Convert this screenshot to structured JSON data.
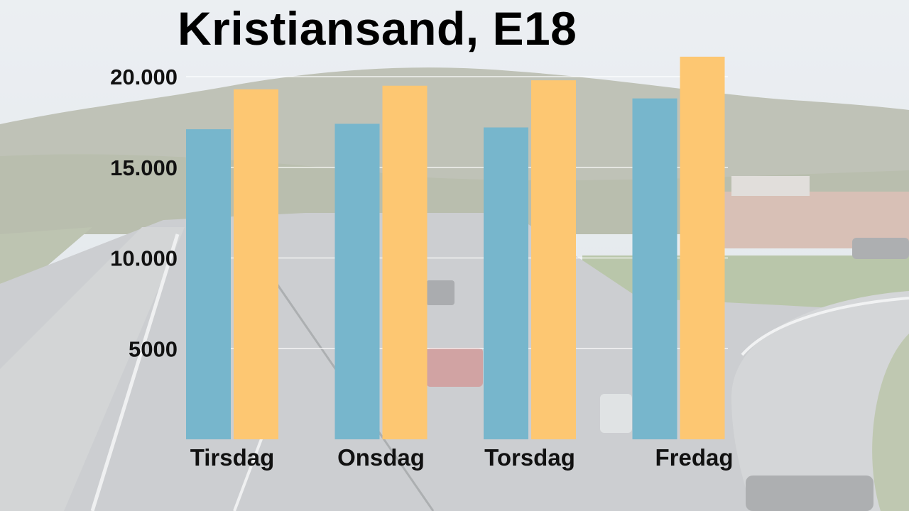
{
  "chart_data": {
    "type": "bar",
    "title": "Kristiansand, E18",
    "xlabel": "",
    "ylabel": "",
    "categories": [
      "Tirsdag",
      "Onsdag",
      "Torsdag",
      "Fredag"
    ],
    "series": [
      {
        "color": "#77b6cc",
        "values": [
          17100,
          17400,
          17200,
          18800
        ]
      },
      {
        "color": "#fdc772",
        "values": [
          19300,
          19500,
          19800,
          21100
        ]
      }
    ],
    "yticks": [
      5000,
      10000,
      15000,
      20000
    ],
    "ytick_labels": [
      "5000",
      "10.000",
      "15.000",
      "20.000"
    ],
    "ylim": [
      0,
      20000
    ],
    "grid": true,
    "legend": "none"
  }
}
